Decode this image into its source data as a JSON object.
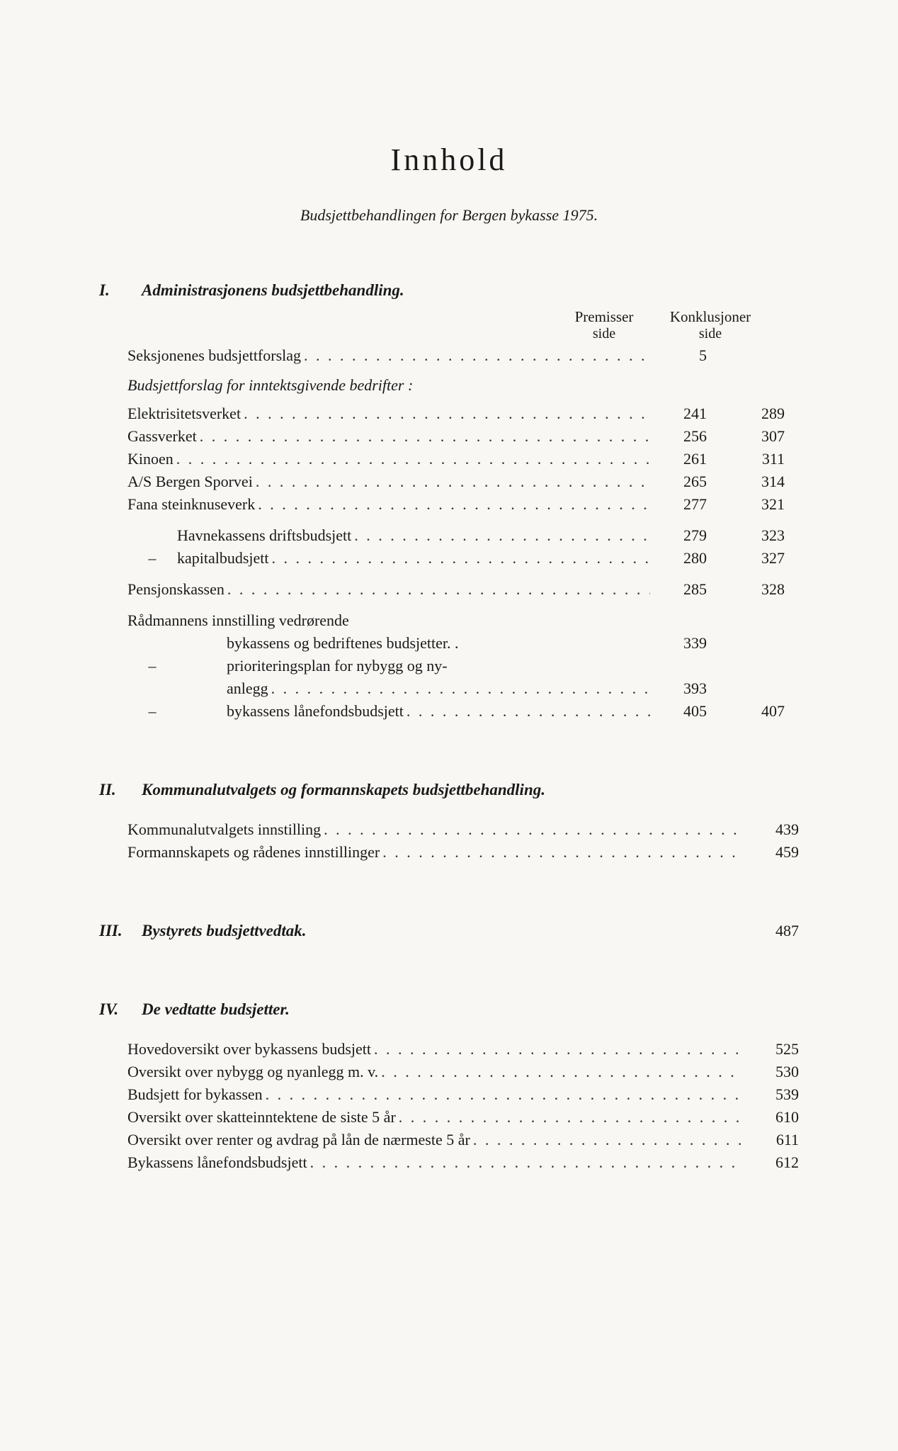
{
  "title": "Innhold",
  "subtitle": "Budsjettbehandlingen for Bergen bykasse 1975.",
  "colHeaders": {
    "premisser": "Premisser",
    "konklusjoner": "Konklusjoner",
    "side": "side"
  },
  "sections": {
    "I": {
      "num": "I.",
      "heading": "Administrasjonens budsjettbehandling.",
      "rows1": [
        {
          "label": "Seksjonenes budsjettforslag",
          "p": "5",
          "k": ""
        }
      ],
      "subheading": "Budsjettforslag for inntektsgivende bedrifter :",
      "rows2": [
        {
          "label": "Elektrisitetsverket",
          "p": "241",
          "k": "289"
        },
        {
          "label": "Gassverket",
          "p": "256",
          "k": "307"
        },
        {
          "label": "Kinoen",
          "p": "261",
          "k": "311"
        },
        {
          "label": "A/S Bergen Sporvei",
          "p": "265",
          "k": "314"
        },
        {
          "label": "Fana steinknuseverk",
          "p": "277",
          "k": "321"
        }
      ],
      "rows3": [
        {
          "label": "Havnekassens driftsbudsjett",
          "p": "279",
          "k": "323"
        },
        {
          "dash": "–",
          "label": "kapitalbudsjett",
          "p": "280",
          "k": "327"
        }
      ],
      "rows4": [
        {
          "label": "Pensjonskassen",
          "p": "285",
          "k": "328"
        }
      ],
      "radmannen": "Rådmannens innstilling vedrørende",
      "rows5": [
        {
          "dash": "",
          "label": "bykassens og bedriftenes budsjetter. .",
          "p": "339",
          "k": "",
          "nodots": true
        },
        {
          "dash": "–",
          "label": "prioriteringsplan for nybygg og ny-",
          "p": "",
          "k": "",
          "nodots": true
        },
        {
          "dash": "",
          "label": "anlegg",
          "p": "393",
          "k": ""
        },
        {
          "dash": "–",
          "label": "bykassens lånefondsbudsjett",
          "p": "405",
          "k": "407"
        }
      ]
    },
    "II": {
      "num": "II.",
      "heading": "Kommunalutvalgets og formannskapets budsjettbehandling.",
      "rows": [
        {
          "label": "Kommunalutvalgets innstilling",
          "page": "439"
        },
        {
          "label": "Formannskapets og rådenes innstillinger",
          "page": "459"
        }
      ]
    },
    "III": {
      "num": "III.",
      "heading": "Bystyrets budsjettvedtak.",
      "page": "487"
    },
    "IV": {
      "num": "IV.",
      "heading": "De vedtatte budsjetter.",
      "rows": [
        {
          "label": "Hovedoversikt over bykassens budsjett",
          "page": "525"
        },
        {
          "label": "Oversikt over nybygg og nyanlegg m. v.",
          "page": "530"
        },
        {
          "label": "Budsjett for bykassen",
          "page": "539"
        },
        {
          "label": "Oversikt over skatteinntektene de siste 5 år",
          "page": "610"
        },
        {
          "label": "Oversikt over renter og avdrag på lån de nærmeste 5 år",
          "page": "611"
        },
        {
          "label": "Bykassens lånefondsbudsjett",
          "page": "612"
        }
      ]
    }
  }
}
